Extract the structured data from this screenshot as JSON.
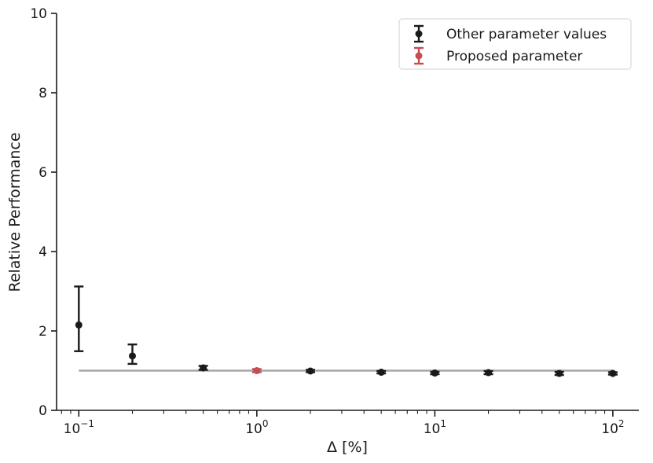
{
  "chart_data": {
    "type": "scatter",
    "xlabel": "Δ [%]",
    "ylabel": "Relative Performance",
    "xscale": "log",
    "xlim": [
      0.075,
      140
    ],
    "ylim": [
      0,
      10
    ],
    "grid": false,
    "legend_position": "top-right",
    "x_tick_values": [
      0.1,
      1,
      10,
      100
    ],
    "x_tick_labels": [
      {
        "base": "10",
        "exp": "−1"
      },
      {
        "base": "10",
        "exp": "0"
      },
      {
        "base": "10",
        "exp": "1"
      },
      {
        "base": "10",
        "exp": "2"
      }
    ],
    "y_ticks": [
      0,
      2,
      4,
      6,
      8,
      10
    ],
    "reference_line": {
      "y": 1.0,
      "x_start": 0.1,
      "x_end": 100,
      "color": "#a6a6a6"
    },
    "series": [
      {
        "name": "Other parameter values",
        "color": "#1a1a1a",
        "points": [
          {
            "x": 0.1,
            "y": 2.15,
            "err_low": 1.49,
            "err_high": 3.12
          },
          {
            "x": 0.2,
            "y": 1.37,
            "err_low": 1.17,
            "err_high": 1.66
          },
          {
            "x": 0.5,
            "y": 1.07,
            "err_low": 1.02,
            "err_high": 1.12
          },
          {
            "x": 2,
            "y": 0.99,
            "err_low": 0.96,
            "err_high": 1.02
          },
          {
            "x": 5,
            "y": 0.96,
            "err_low": 0.93,
            "err_high": 0.99
          },
          {
            "x": 10,
            "y": 0.94,
            "err_low": 0.91,
            "err_high": 0.97
          },
          {
            "x": 20,
            "y": 0.95,
            "err_low": 0.91,
            "err_high": 0.99
          },
          {
            "x": 50,
            "y": 0.93,
            "err_low": 0.89,
            "err_high": 0.97
          },
          {
            "x": 100,
            "y": 0.93,
            "err_low": 0.9,
            "err_high": 0.96
          }
        ]
      },
      {
        "name": "Proposed parameter",
        "color": "#c44e52",
        "points": [
          {
            "x": 1,
            "y": 1.0,
            "err_low": 0.96,
            "err_high": 1.04
          }
        ]
      }
    ]
  }
}
